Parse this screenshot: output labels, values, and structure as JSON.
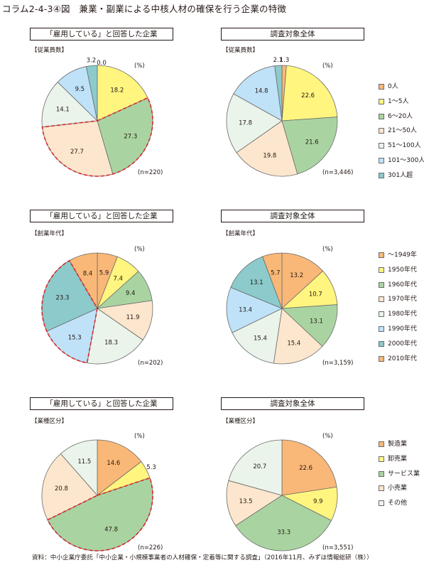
{
  "page": {
    "title": "コラム2-4-3④図　兼業・副業による中核人材の確保を行う企業の特徴",
    "source": "資料：中小企業庁委託「中小企業・小規模事業者の人材確保・定着等に関する調査」（2016年11月、みずほ情報総研（株））"
  },
  "colors": {
    "palette": [
      "#f9b877",
      "#fff57f",
      "#a9d4a1",
      "#fce6cd",
      "#eaf4ea",
      "#bfe2f8",
      "#8ccacb"
    ],
    "dashed_outline": "#d9262b"
  },
  "legends": [
    {
      "items": [
        "0人",
        "1～5人",
        "6～20人",
        "21～50人",
        "51～100人",
        "101～300人",
        "301人超"
      ]
    },
    {
      "items": [
        "～1949年",
        "1950年代",
        "1960年代",
        "1970年代",
        "1980年代",
        "1990年代",
        "2000年代",
        "2010年代"
      ]
    },
    {
      "items": [
        "製造業",
        "卸売業",
        "サービス業",
        "小売業",
        "その他"
      ]
    }
  ],
  "chart_data": [
    {
      "type": "pie",
      "title": "「雇用している」と回答した企業",
      "subtitle": "【従業員数】",
      "unit": "(%)",
      "n_label": "(n=220)",
      "legend_group": 0,
      "categories": [
        "0人",
        "1～5人",
        "6～20人",
        "21～50人",
        "51～100人",
        "101～300人",
        "301人超"
      ],
      "values": [
        0.0,
        18.2,
        27.3,
        27.7,
        14.1,
        9.5,
        3.2
      ],
      "value_labels": [
        "0.0",
        "18.2",
        "27.3",
        "27.7",
        "14.1",
        "9.5",
        "3.2"
      ],
      "highlighted": [
        2,
        3
      ]
    },
    {
      "type": "pie",
      "title": "調査対象全体",
      "subtitle": "【従業員数】",
      "unit": "(%)",
      "n_label": "(n=3,446)",
      "legend_group": 0,
      "categories": [
        "0人",
        "1～5人",
        "6～20人",
        "21～50人",
        "51～100人",
        "101～300人",
        "301人超"
      ],
      "values": [
        1.3,
        22.6,
        21.6,
        19.8,
        17.8,
        14.8,
        2.1
      ],
      "value_labels": [
        "1.3",
        "22.6",
        "21.6",
        "19.8",
        "17.8",
        "14.8",
        "2.1"
      ],
      "highlighted": []
    },
    {
      "type": "pie",
      "title": "「雇用している」と回答した企業",
      "subtitle": "【創業年代】",
      "unit": "(%)",
      "n_label": "(n=202)",
      "legend_group": 1,
      "categories": [
        "～1949年",
        "1950年代",
        "1960年代",
        "1970年代",
        "1980年代",
        "1990年代",
        "2000年代",
        "2010年代"
      ],
      "values": [
        5.9,
        7.4,
        9.4,
        11.9,
        18.3,
        15.3,
        23.3,
        8.4
      ],
      "value_labels": [
        "5.9",
        "7.4",
        "9.4",
        "11.9",
        "18.3",
        "15.3",
        "23.3",
        "8.4"
      ],
      "highlighted": [
        5,
        6
      ]
    },
    {
      "type": "pie",
      "title": "調査対象全体",
      "subtitle": "【創業年代】",
      "unit": "(%)",
      "n_label": "(n=3,159)",
      "legend_group": 1,
      "categories": [
        "～1949年",
        "1950年代",
        "1960年代",
        "1970年代",
        "1980年代",
        "1990年代",
        "2000年代",
        "2010年代"
      ],
      "values": [
        13.2,
        10.7,
        13.1,
        15.4,
        15.4,
        13.4,
        13.1,
        5.7
      ],
      "value_labels": [
        "13.2",
        "10.7",
        "13.1",
        "15.4",
        "15.4",
        "13.4",
        "13.1",
        "5.7"
      ],
      "highlighted": []
    },
    {
      "type": "pie",
      "title": "「雇用している」と回答した企業",
      "subtitle": "【業種区分】",
      "unit": "(%)",
      "n_label": "(n=226)",
      "legend_group": 2,
      "categories": [
        "製造業",
        "卸売業",
        "サービス業",
        "小売業",
        "その他"
      ],
      "values": [
        14.6,
        5.3,
        47.8,
        20.8,
        11.5
      ],
      "value_labels": [
        "14.6",
        "5.3",
        "47.8",
        "20.8",
        "11.5"
      ],
      "highlighted": [
        2
      ]
    },
    {
      "type": "pie",
      "title": "調査対象全体",
      "subtitle": "【業種区分】",
      "unit": "(%)",
      "n_label": "(n=3,551)",
      "legend_group": 2,
      "categories": [
        "製造業",
        "卸売業",
        "サービス業",
        "小売業",
        "その他"
      ],
      "values": [
        22.6,
        9.9,
        33.3,
        13.5,
        20.7
      ],
      "value_labels": [
        "22.6",
        "9.9",
        "33.3",
        "13.5",
        "20.7"
      ],
      "highlighted": []
    }
  ]
}
